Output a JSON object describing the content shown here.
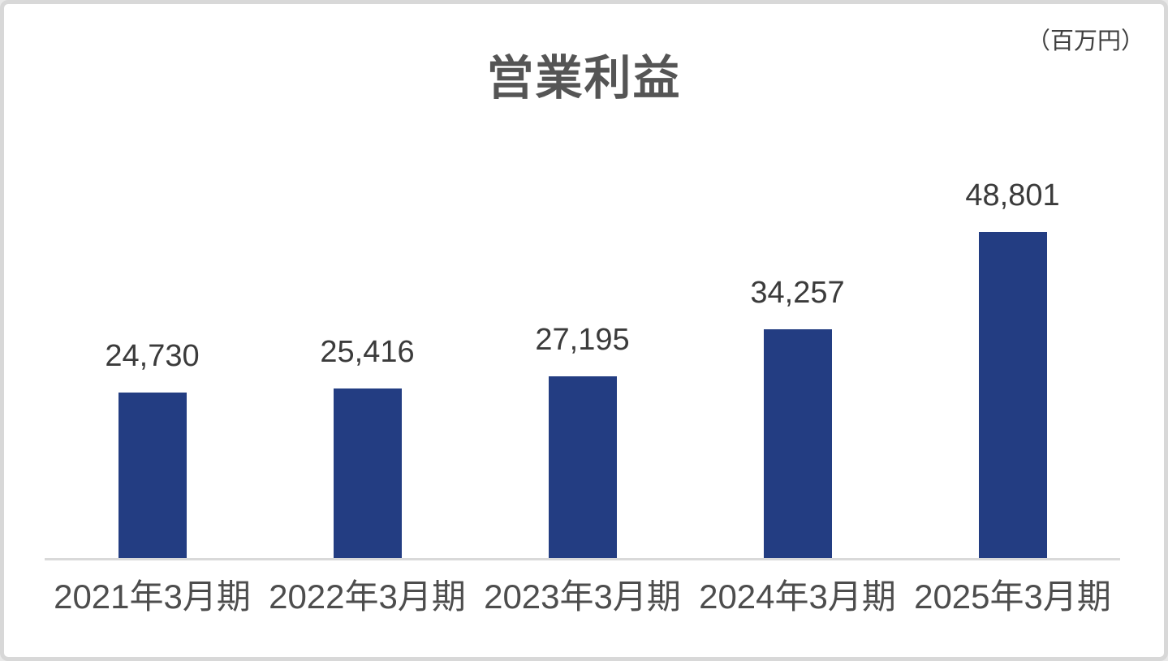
{
  "chart_data": {
    "type": "bar",
    "title": "営業利益",
    "unit_label": "（百万円）",
    "categories": [
      "2021年3月期",
      "2022年3月期",
      "2023年3月期",
      "2024年3月期",
      "2025年3月期"
    ],
    "values": [
      24730,
      25416,
      27195,
      34257,
      48801
    ],
    "value_labels": [
      "24,730",
      "25,416",
      "27,195",
      "34,257",
      "48,801"
    ],
    "ylim": [
      0,
      64700
    ],
    "xlabel": "",
    "ylabel": "",
    "grid": false,
    "legend": false,
    "y_axis_visible": false,
    "bar_color": "#233d82",
    "axis_line_color": "#d9d9d9",
    "title_color": "#555555",
    "label_color": "#3b3b3b",
    "tick_label_color": "#4d4d4d"
  }
}
